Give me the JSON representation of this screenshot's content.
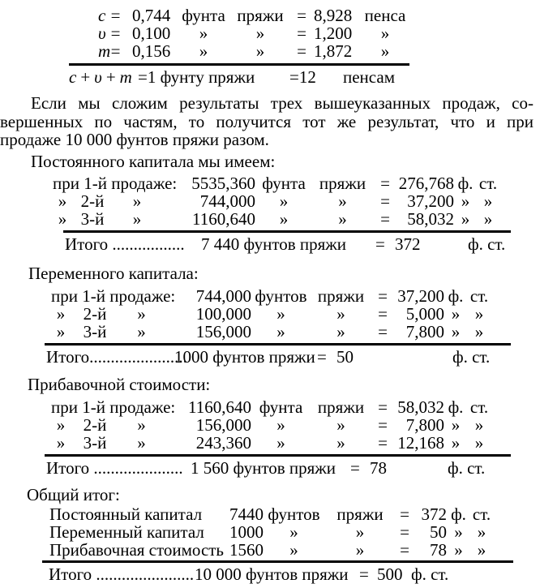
{
  "formula_table": {
    "rows": [
      {
        "v": "c",
        "e1": "=",
        "q": "0,744",
        "u1": "фунта",
        "u2": "пряжи",
        "e2": "=",
        "val": "8,928",
        "u3": "пенса"
      },
      {
        "v": "υ",
        "e1": "=",
        "q": "0,100",
        "u1": "»",
        "u2": "»",
        "e2": "=",
        "val": "1,200",
        "u3": "»"
      },
      {
        "v": "m",
        "e1": "=",
        "q": "0,156",
        "u1": "»",
        "u2": "»",
        "e2": "=",
        "val": "1,872",
        "u3": "»"
      }
    ],
    "total": {
      "c": "c",
      "p1": "+",
      "v": "υ",
      "p2": "+",
      "m": "m",
      "mid": "=1 фунту пряжи",
      "eq": "=12",
      "unit": "пенсам"
    }
  },
  "paragraph": {
    "line1": "Если мы сложим результаты трех вышеуказанных продаж, со-",
    "line2": "вершенных по частям, то получится тот же результат, что и при",
    "line3": "продаже 10 000 фунтов пряжи разом."
  },
  "sections": {
    "constant": {
      "heading": "Постоянного капитала мы имеем:",
      "row1": {
        "label": "при 1-й продаже:",
        "q": "5535,360",
        "u1": "фунта",
        "u2": "пряжи",
        "e": "=",
        "val": "276,768",
        "u3": "ф.",
        "u4": "ст."
      },
      "row2": {
        "l1": "»",
        "l2": "2-й",
        "l3": "»",
        "q": "744,000",
        "u1": "»",
        "u2": "»",
        "e": "=",
        "val": "37,200",
        "u3": "»",
        "u4": "»"
      },
      "row3": {
        "l1": "»",
        "l2": "3-й",
        "l3": "»",
        "q": "1160,640",
        "u1": "»",
        "u2": "»",
        "e": "=",
        "val": "58,032",
        "u3": "»",
        "u4": "»"
      },
      "total": {
        "label": "Итого .................",
        "qty": "7 440 фунтов пряжи",
        "eq": "=",
        "val": "372",
        "unit": "ф. ст."
      }
    },
    "variable": {
      "heading": "Переменного капитала:",
      "row1": {
        "label": "при 1-й продаже:",
        "q": "744,000",
        "u1": "фунтов",
        "u2": "пряжи",
        "e": "=",
        "val": "37,200",
        "u3": "ф.",
        "u4": "ст."
      },
      "row2": {
        "l1": "»",
        "l2": "2-й",
        "l3": "»",
        "q": "100,000",
        "u1": "»",
        "u2": "»",
        "e": "=",
        "val": "5,000",
        "u3": "»",
        "u4": "»"
      },
      "row3": {
        "l1": "»",
        "l2": "3-й",
        "l3": "»",
        "q": "156,000",
        "u1": "»",
        "u2": "»",
        "e": "=",
        "val": "7,800",
        "u3": "»",
        "u4": "»"
      },
      "total": {
        "label": "Итого.......................",
        "qty": "1000 фунтов пряжи",
        "eq": "=",
        "val": "50",
        "unit": "ф. ст."
      }
    },
    "surplus": {
      "heading": "Прибавочной стоимости:",
      "row1": {
        "label": "при 1-й продаже:",
        "q": "1160,640",
        "u1": "фунта",
        "u2": "пряжи",
        "e": "=",
        "val": "58,032",
        "u3": "ф.",
        "u4": "ст."
      },
      "row2": {
        "l1": "»",
        "l2": "2-й",
        "l3": "»",
        "q": "156,000",
        "u1": "»",
        "u2": "»",
        "e": "=",
        "val": "7,800",
        "u3": "»",
        "u4": "»"
      },
      "row3": {
        "l1": "»",
        "l2": "3-й",
        "l3": "»",
        "q": "243,360",
        "u1": "»",
        "u2": "»",
        "e": "=",
        "val": "12,168",
        "u3": "»",
        "u4": "»"
      },
      "total": {
        "label": "Итого .....................",
        "qty": "1 560 фунтов пряжи",
        "eq": "=",
        "val": "78",
        "unit": "ф. ст."
      }
    },
    "grand": {
      "heading": "Общий итог:",
      "row1": {
        "label": "Постоянный капитал",
        "q": "7440",
        "u1": "фунтов",
        "u2": "пряжи",
        "e": "=",
        "val": "372",
        "u3": "ф.",
        "u4": "ст."
      },
      "row2": {
        "label": "Переменный капитал",
        "q": "1000",
        "u1": "»",
        "u2": "»",
        "e": "=",
        "val": "50",
        "u3": "»",
        "u4": "»"
      },
      "row3": {
        "label": "Прибавочная стоимость",
        "q": "1560",
        "u1": "»",
        "u2": "»",
        "e": "=",
        "val": "78",
        "u3": "»",
        "u4": "»"
      },
      "total": {
        "label": "Итого .......................",
        "qty": "10 000 фунтов пряжи",
        "eq": "=",
        "val": "500",
        "unit": "ф. ст."
      }
    }
  }
}
